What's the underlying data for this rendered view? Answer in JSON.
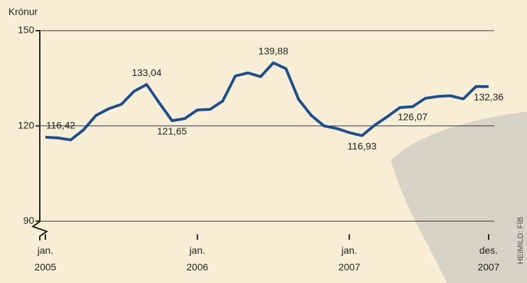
{
  "chart_data": {
    "type": "line",
    "y_label": "Krónur",
    "source": "HEIMILD: FÍB",
    "categories": [
      "jan. 2005",
      null,
      null,
      null,
      null,
      null,
      null,
      null,
      null,
      null,
      null,
      null,
      "jan. 2006",
      null,
      null,
      null,
      null,
      null,
      null,
      null,
      null,
      null,
      null,
      null,
      "jan. 2007",
      null,
      null,
      null,
      null,
      null,
      null,
      null,
      null,
      null,
      null,
      "des. 2007"
    ],
    "series": [
      {
        "name": "Krónur",
        "color": "#1d4f8f",
        "values": [
          116.42,
          116.2,
          115.6,
          118.7,
          123.3,
          125.4,
          126.8,
          130.9,
          133.04,
          127.2,
          121.65,
          122.3,
          125.0,
          125.2,
          127.8,
          135.7,
          136.7,
          135.5,
          139.88,
          138.0,
          128.3,
          123.3,
          120.0,
          119.2,
          117.9,
          116.93,
          120.2,
          122.9,
          125.8,
          126.07,
          128.7,
          129.3,
          129.5,
          128.5,
          132.4,
          132.36
        ],
        "value_labels": [
          "116,42",
          null,
          null,
          null,
          null,
          null,
          null,
          null,
          "133,04",
          null,
          "121,65",
          null,
          null,
          null,
          null,
          null,
          null,
          null,
          "139,88",
          null,
          null,
          null,
          null,
          null,
          null,
          "116,93",
          null,
          null,
          null,
          "126,07",
          null,
          null,
          null,
          null,
          null,
          "132,36"
        ]
      }
    ],
    "ylim": [
      85,
      150
    ],
    "yticks": [
      90,
      120,
      150
    ],
    "grid": true
  }
}
